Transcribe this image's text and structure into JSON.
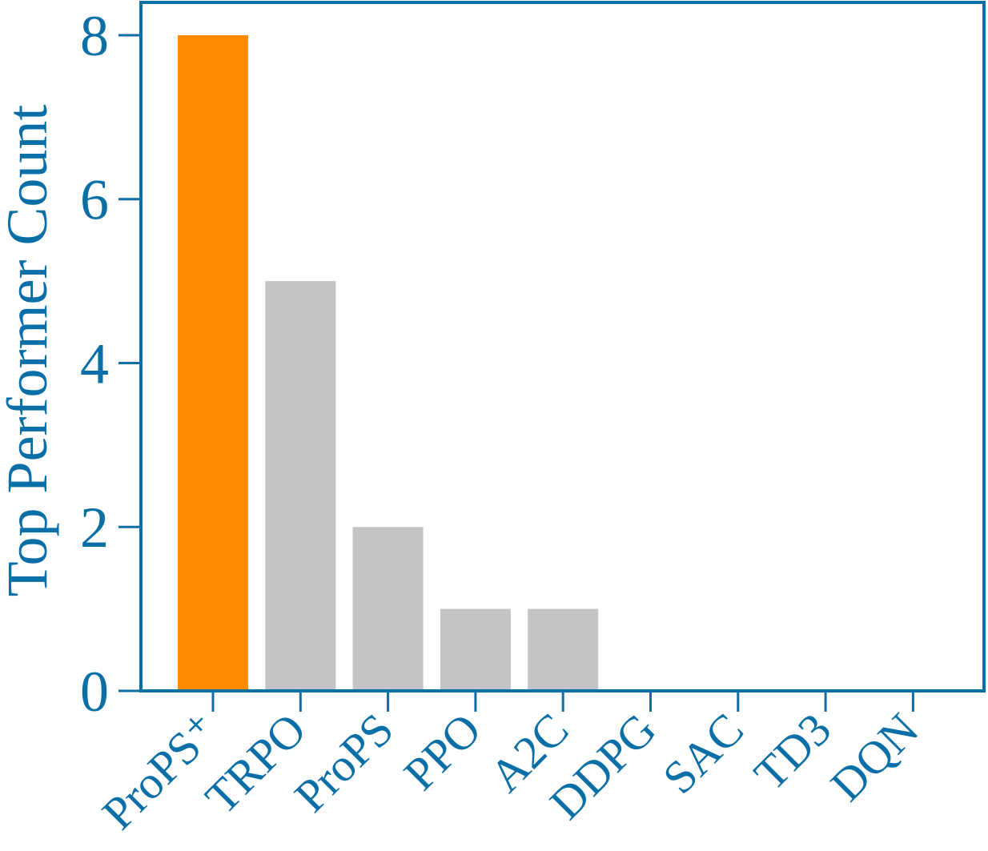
{
  "chart_data": {
    "type": "bar",
    "categories": [
      "ProPS⁺",
      "TRPO",
      "ProPS",
      "PPO",
      "A2C",
      "DDPG",
      "SAC",
      "TD3",
      "DQN"
    ],
    "values": [
      8,
      5,
      2,
      1,
      1,
      0,
      0,
      0,
      0
    ],
    "title": "",
    "xlabel": "",
    "ylabel": "Top Performer Count",
    "ylim": [
      0,
      8.4
    ],
    "yticks": [
      "0",
      "2",
      "4",
      "6",
      "8"
    ],
    "grid": false,
    "colors": {
      "highlight": "#ff8c00",
      "default": "#c4c4c4",
      "axis": "#0a6fa6"
    }
  }
}
